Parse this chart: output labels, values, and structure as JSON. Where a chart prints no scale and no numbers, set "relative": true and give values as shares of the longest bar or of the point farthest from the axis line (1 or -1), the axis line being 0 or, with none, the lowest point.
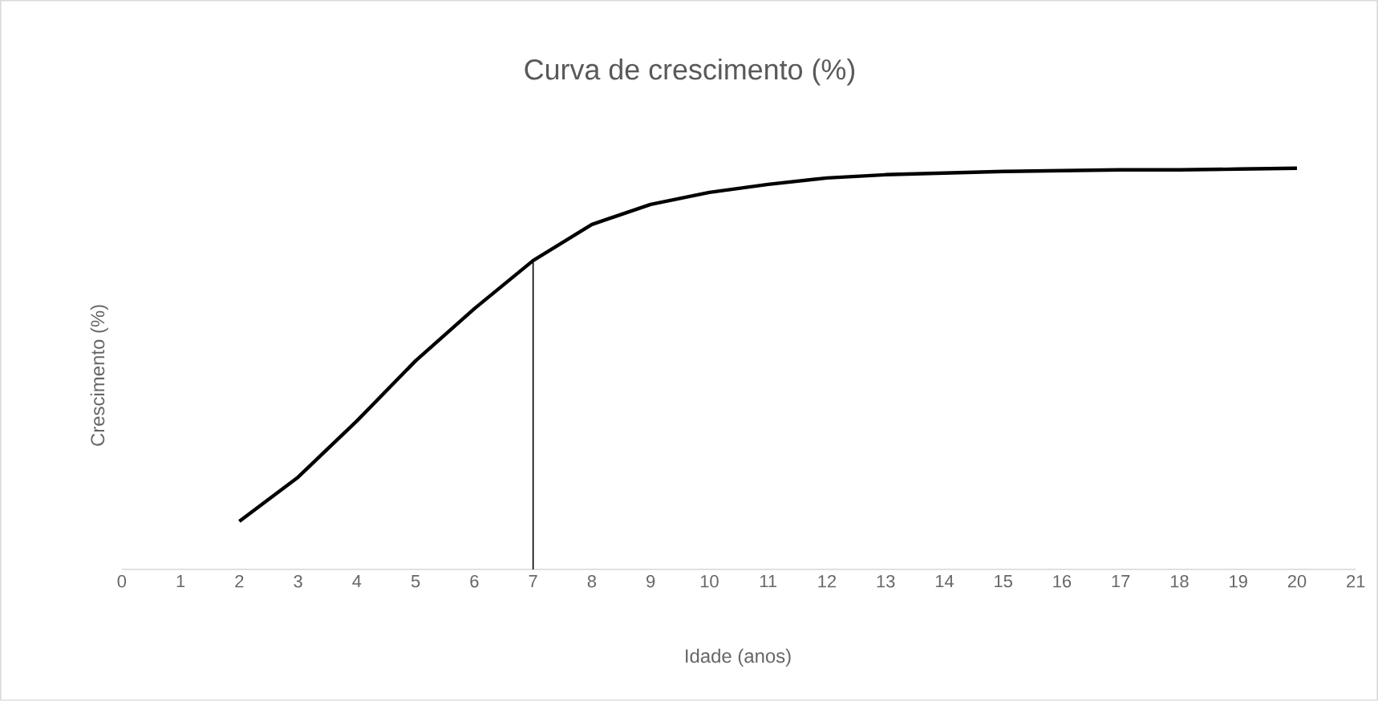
{
  "chart_data": {
    "type": "line",
    "title": "Curva de crescimento (%)",
    "xlabel": "Idade (anos)",
    "ylabel": "Crescimento (%)",
    "relative": true,
    "tick_labels": "x",
    "x": [
      2,
      3,
      4,
      5,
      6,
      7,
      8,
      9,
      10,
      11,
      12,
      13,
      14,
      15,
      16,
      17,
      18,
      19,
      20
    ],
    "values": [
      0.12,
      0.23,
      0.37,
      0.52,
      0.65,
      0.77,
      0.86,
      0.91,
      0.94,
      0.96,
      0.976,
      0.984,
      0.988,
      0.992,
      0.994,
      0.996,
      0.996,
      0.998,
      1
    ],
    "color": "#000000",
    "xlim": [
      0,
      21
    ],
    "xticks": [
      0,
      1,
      2,
      3,
      4,
      5,
      6,
      7,
      8,
      9,
      10,
      11,
      12,
      13,
      14,
      15,
      16,
      17,
      18,
      19,
      20,
      21
    ],
    "ref_lines": [
      {
        "axis": "x",
        "value": 7,
        "color": "#000000"
      }
    ]
  }
}
